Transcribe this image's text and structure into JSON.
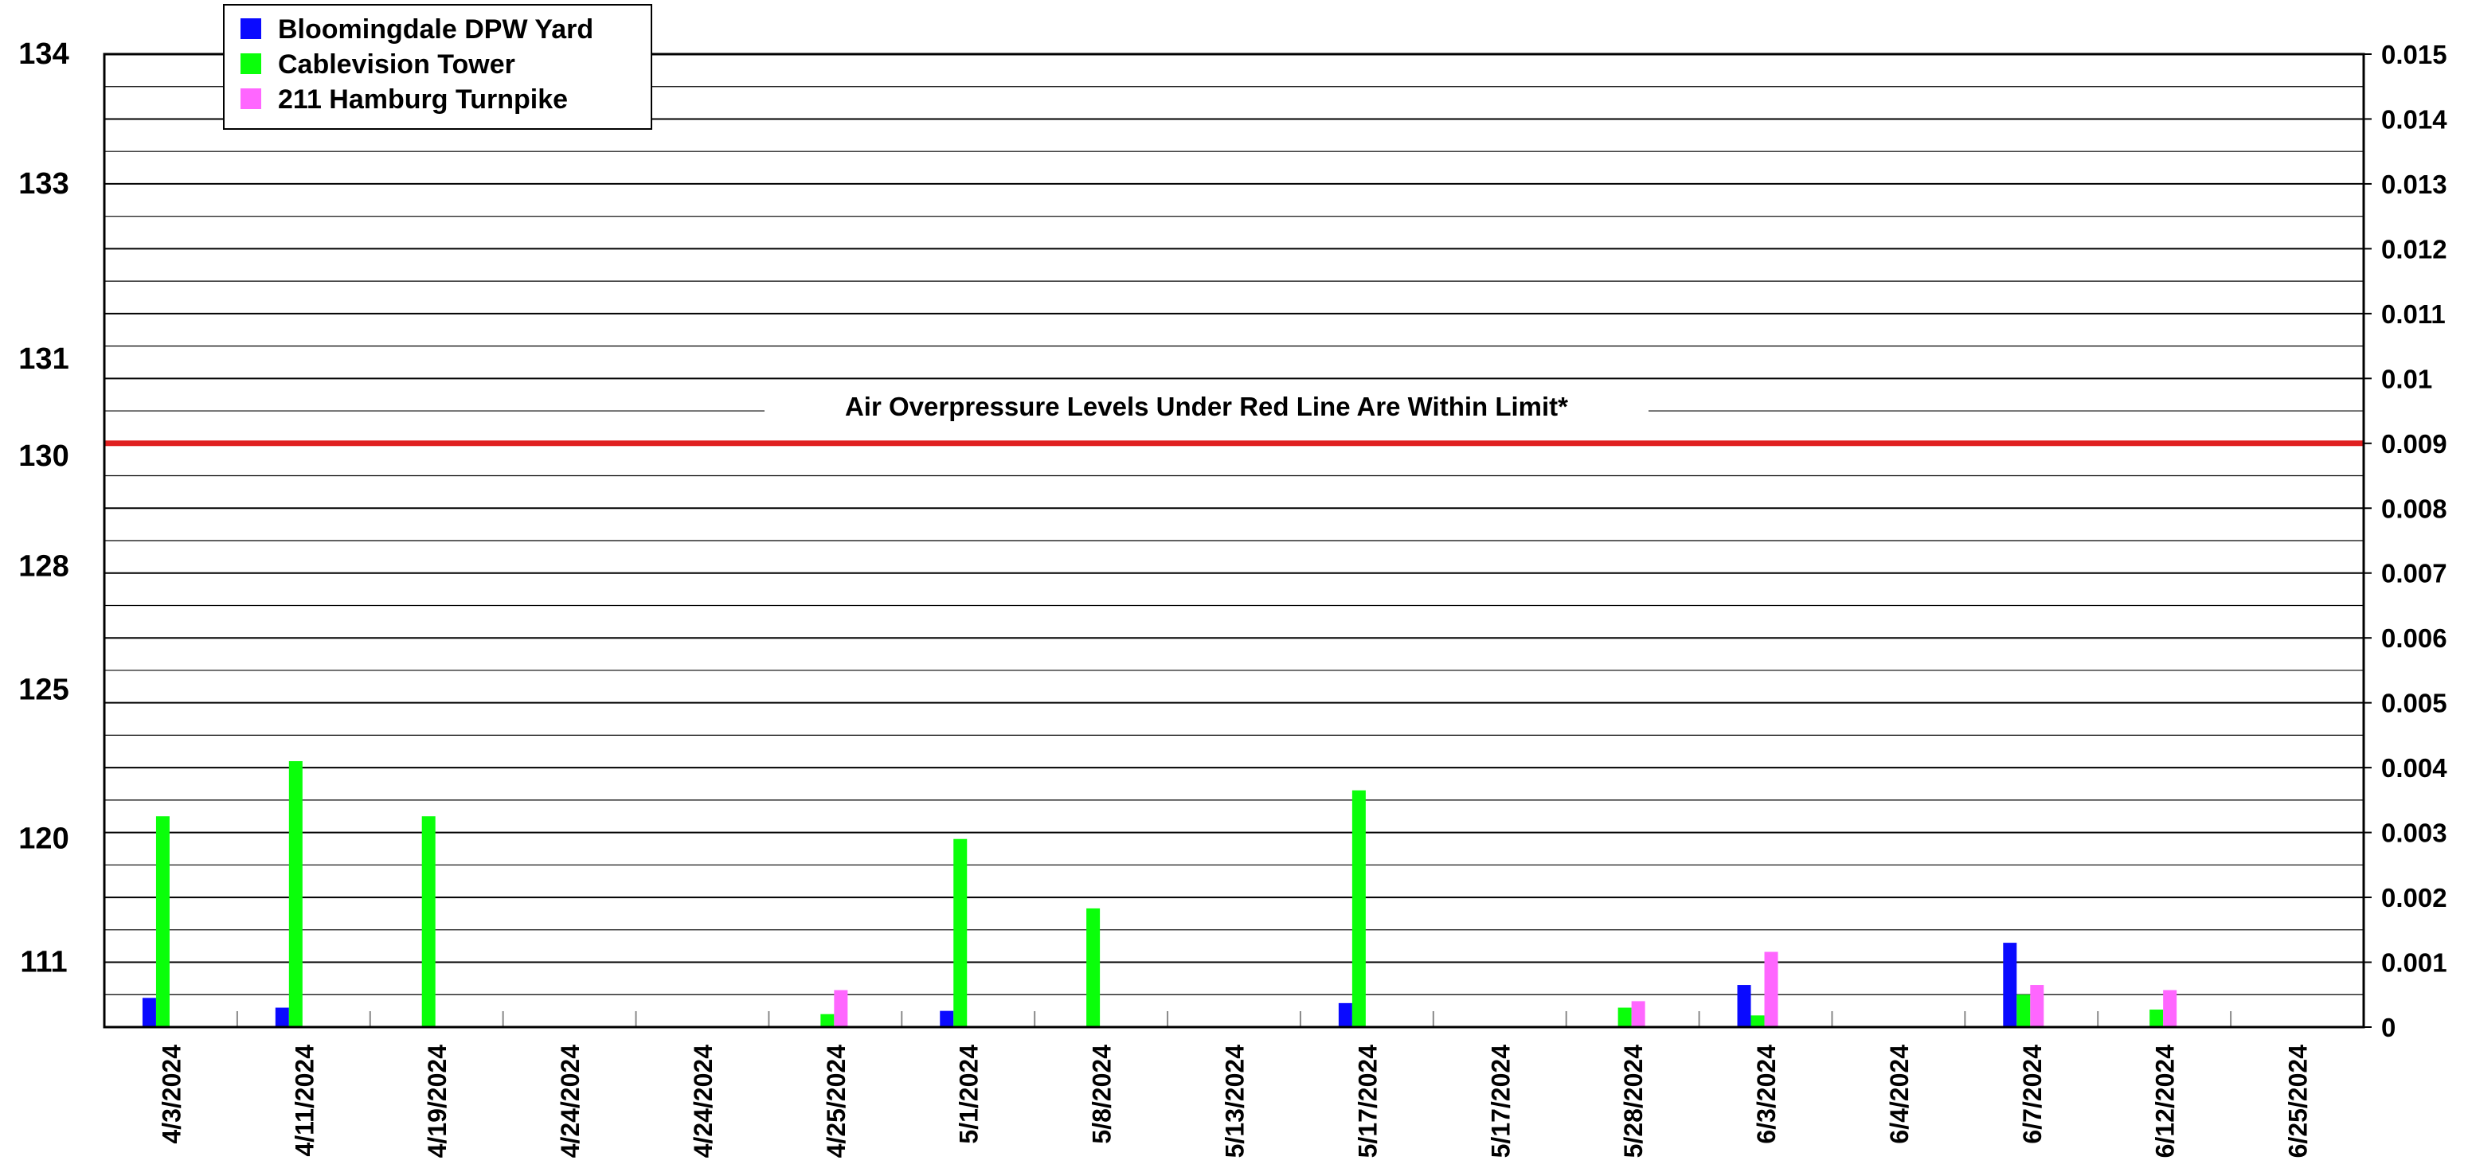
{
  "chart_data": {
    "type": "bar",
    "categories": [
      "4/3/2024",
      "4/11/2024",
      "4/19/2024",
      "4/24/2024",
      "4/24/2024",
      "4/25/2024",
      "5/1/2024",
      "5/8/2024",
      "5/13/2024",
      "5/17/2024",
      "5/17/2024",
      "5/28/2024",
      "6/3/2024",
      "6/4/2024",
      "6/7/2024",
      "6/12/2024",
      "6/25/2024"
    ],
    "series": [
      {
        "name": "Bloomingdale DPW Yard",
        "color": "#0a0aff",
        "values": [
          0.00045,
          0.0003,
          null,
          null,
          null,
          null,
          0.00025,
          null,
          null,
          0.00037,
          null,
          null,
          0.00065,
          null,
          0.0013,
          null,
          null
        ]
      },
      {
        "name": "Cablevision Tower",
        "color": "#0aff0a",
        "values": [
          0.00325,
          0.0041,
          0.00325,
          null,
          null,
          0.0002,
          0.0029,
          0.00183,
          null,
          0.00365,
          null,
          0.0003,
          0.00018,
          null,
          0.0005,
          0.00027,
          null
        ]
      },
      {
        "name": "211 Hamburg Turnpike",
        "color": "#ff66ff",
        "values": [
          null,
          null,
          null,
          null,
          null,
          0.00057,
          null,
          null,
          null,
          null,
          null,
          0.0004,
          0.00116,
          null,
          0.00065,
          0.00057,
          null
        ]
      }
    ],
    "y_right": {
      "min": 0,
      "max": 0.015,
      "ticks": [
        "0",
        "0.001",
        "0.002",
        "0.003",
        "0.004",
        "0.005",
        "0.006",
        "0.007",
        "0.008",
        "0.009",
        "0.01",
        "0.011",
        "0.012",
        "0.013",
        "0.014",
        "0.015"
      ]
    },
    "y_left_labels": [
      {
        "label": "134",
        "value": 0.015
      },
      {
        "label": "133",
        "value": 0.013
      },
      {
        "label": "131",
        "value": 0.0103
      },
      {
        "label": "130",
        "value": 0.0088
      },
      {
        "label": "128",
        "value": 0.0071
      },
      {
        "label": "125",
        "value": 0.0052
      },
      {
        "label": "120",
        "value": 0.0029
      },
      {
        "label": "111",
        "value": 0.001
      }
    ],
    "limit_line": {
      "value": 0.009,
      "color": "#e02020",
      "label": "Air Overpressure Levels Under Red Line Are Within Limit*"
    },
    "legend_position": "top-left",
    "grid": true,
    "minor_gridlines_per_tick": 2
  }
}
